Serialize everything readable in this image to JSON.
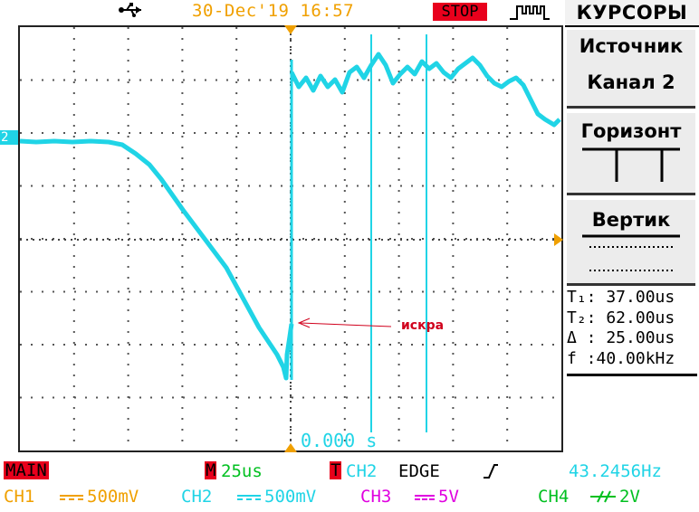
{
  "status": {
    "datetime": "30-Dec'19 16:57",
    "run_state": "STOP",
    "icons": [
      "usb-icon",
      "trigger-waveform-icon"
    ]
  },
  "screen": {
    "channel_marker": "2",
    "time_readout": "0.000 s",
    "annotation": "искра"
  },
  "menu": {
    "title": "КУРСОРЫ",
    "source_label": "Источник",
    "source_value": "Канал 2",
    "horizontal_label": "Горизонт",
    "vertical_label": "Вертик",
    "cursors": {
      "t1": "T₁: 37.00us",
      "t2": "T₂: 62.00us",
      "delta": "Δ : 25.00us",
      "freq": "f :40.00kHz"
    }
  },
  "bottom": {
    "main": "MAIN",
    "m_badge": "M",
    "timebase": "25us",
    "t_badge": "T",
    "trigger_source": "CH2",
    "trigger_type": "EDGE",
    "trigger_freq": "43.2456Hz",
    "channels": [
      {
        "name": "CH1",
        "scale": "500mV",
        "color": "#f0a000"
      },
      {
        "name": "CH2",
        "scale": "500mV",
        "color": "#20d4e6"
      },
      {
        "name": "CH3",
        "scale": "5V",
        "color": "#e000e0"
      },
      {
        "name": "CH4",
        "scale": "2V",
        "color": "#00c020"
      }
    ]
  },
  "colors": {
    "trace": "#20d4e6",
    "accent_red": "#e8001c",
    "orange": "#f0a000"
  }
}
